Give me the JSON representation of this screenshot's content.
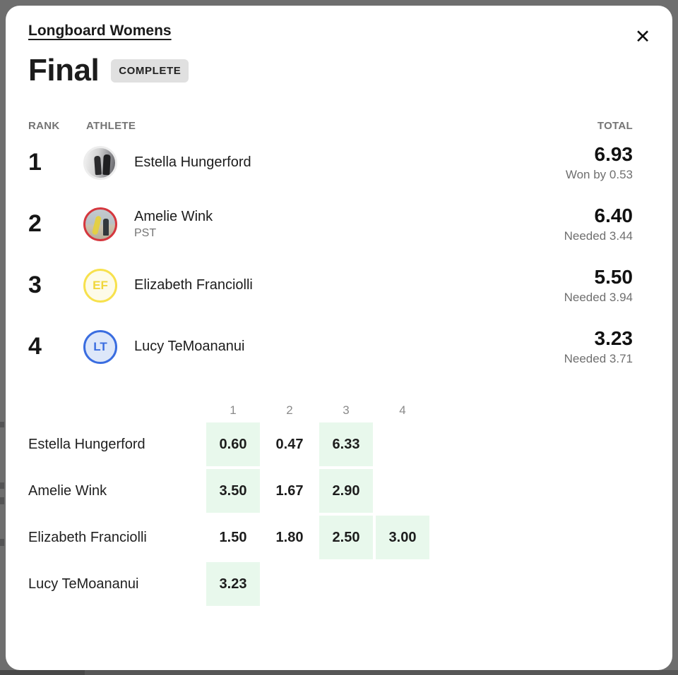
{
  "backdrop": {
    "color": "#6e6e6e"
  },
  "modal": {
    "division_link": "Longboard Womens",
    "title": "Final",
    "status_badge": "COMPLETE",
    "close_glyph": "✕"
  },
  "results": {
    "columns": {
      "rank": "RANK",
      "athlete": "ATHLETE",
      "total": "TOTAL"
    },
    "rows": [
      {
        "rank": "1",
        "name": "Estella Hungerford",
        "subtitle": "",
        "total": "6.93",
        "note": "Won by 0.53",
        "avatar": {
          "style": "photo-surfers",
          "ring": "#ededed"
        }
      },
      {
        "rank": "2",
        "name": "Amelie Wink",
        "subtitle": "PST",
        "total": "6.40",
        "note": "Needed 3.44",
        "avatar": {
          "style": "photo-beach",
          "ring": "#d5373e"
        }
      },
      {
        "rank": "3",
        "name": "Elizabeth Franciolli",
        "subtitle": "",
        "total": "5.50",
        "note": "Needed 3.94",
        "avatar": {
          "style": "initials",
          "initials": "EF",
          "ring": "#f7e14d",
          "bg": "#fdfbe9",
          "fg": "#f0d73c"
        }
      },
      {
        "rank": "4",
        "name": "Lucy TeMoananui",
        "subtitle": "",
        "total": "3.23",
        "note": "Needed 3.71",
        "avatar": {
          "style": "initials",
          "initials": "LT",
          "ring": "#3a6de0",
          "bg": "#dde7f9",
          "fg": "#3a6de0"
        }
      }
    ]
  },
  "wave_table": {
    "columns": [
      "1",
      "2",
      "3",
      "4"
    ],
    "counted_color": "#e8f8ec",
    "rows": [
      {
        "name": "Estella Hungerford",
        "scores": [
          {
            "value": "0.60",
            "counted": true
          },
          {
            "value": "0.47",
            "counted": false
          },
          {
            "value": "6.33",
            "counted": true
          },
          {
            "value": "",
            "counted": false
          }
        ]
      },
      {
        "name": "Amelie Wink",
        "scores": [
          {
            "value": "3.50",
            "counted": true
          },
          {
            "value": "1.67",
            "counted": false
          },
          {
            "value": "2.90",
            "counted": true
          },
          {
            "value": "",
            "counted": false
          }
        ]
      },
      {
        "name": "Elizabeth Franciolli",
        "scores": [
          {
            "value": "1.50",
            "counted": false
          },
          {
            "value": "1.80",
            "counted": false
          },
          {
            "value": "2.50",
            "counted": true
          },
          {
            "value": "3.00",
            "counted": true
          }
        ]
      },
      {
        "name": "Lucy TeMoananui",
        "scores": [
          {
            "value": "3.23",
            "counted": true
          },
          {
            "value": "",
            "counted": false
          },
          {
            "value": "",
            "counted": false
          },
          {
            "value": "",
            "counted": false
          }
        ]
      }
    ]
  }
}
